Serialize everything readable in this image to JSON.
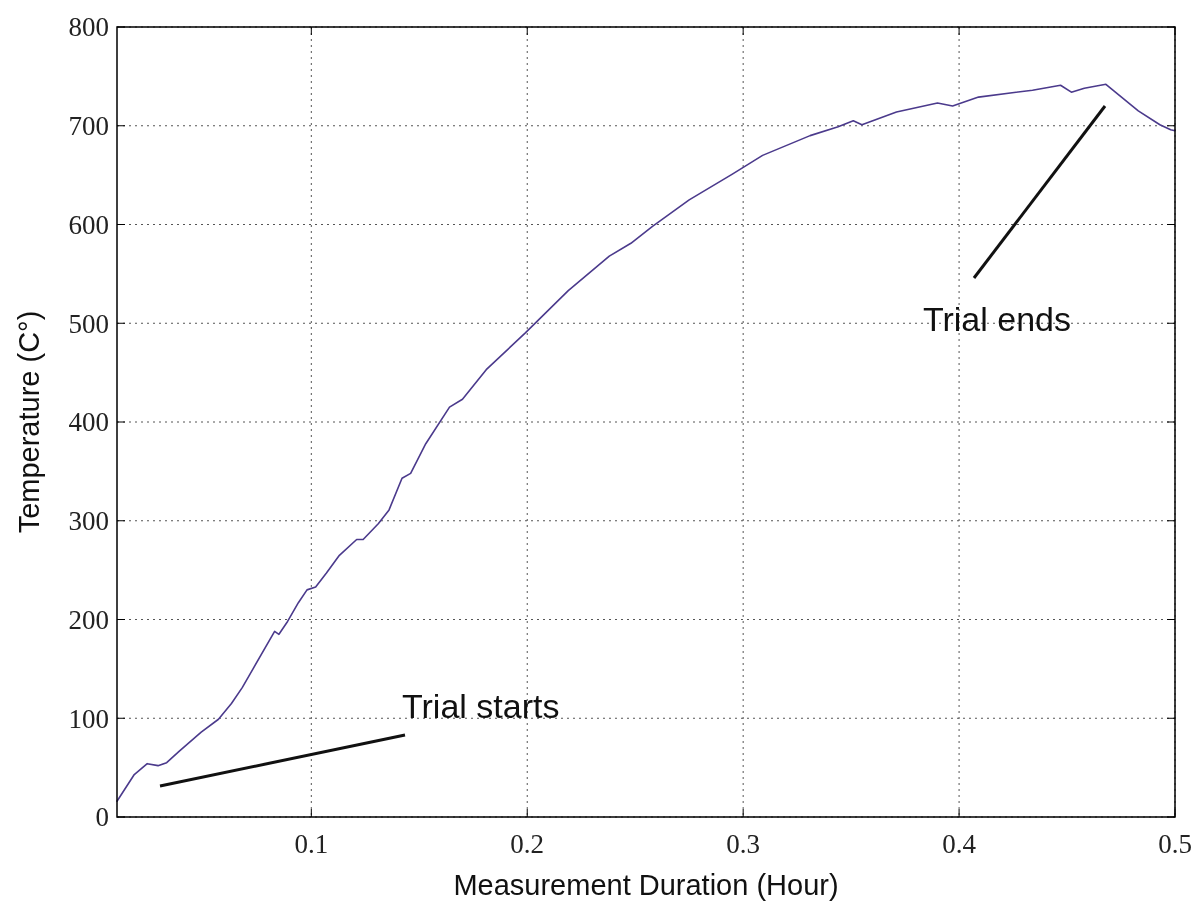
{
  "chart_data": {
    "type": "line",
    "xlabel": "Measurement Duration (Hour)",
    "ylabel": "Temperature (C°)",
    "color": "#4b3a8c",
    "line_style": "solid",
    "grid": true,
    "xlim": [
      0.01,
      0.5
    ],
    "ylim": [
      0,
      800
    ],
    "xticks": [
      0.1,
      0.2,
      0.3,
      0.4,
      0.5
    ],
    "yticks": [
      0,
      100,
      200,
      300,
      400,
      500,
      600,
      700,
      800
    ],
    "x": [
      0.01,
      0.018,
      0.024,
      0.029,
      0.033,
      0.039,
      0.049,
      0.057,
      0.063,
      0.068,
      0.073,
      0.083,
      0.085,
      0.089,
      0.094,
      0.098,
      0.102,
      0.107,
      0.113,
      0.121,
      0.124,
      0.131,
      0.136,
      0.142,
      0.146,
      0.153,
      0.164,
      0.17,
      0.181,
      0.199,
      0.219,
      0.238,
      0.248,
      0.258,
      0.275,
      0.295,
      0.309,
      0.331,
      0.344,
      0.351,
      0.355,
      0.371,
      0.39,
      0.397,
      0.409,
      0.434,
      0.447,
      0.452,
      0.458,
      0.468,
      0.483,
      0.493,
      0.498,
      0.5
    ],
    "values": [
      16,
      43,
      54,
      52,
      55,
      67,
      86,
      99,
      115,
      131,
      150,
      188,
      185,
      198,
      217,
      230,
      233,
      247,
      265,
      281,
      281,
      297,
      311,
      343,
      348,
      378,
      415,
      423,
      453,
      490,
      533,
      568,
      581,
      598,
      625,
      651,
      670,
      690,
      699,
      705,
      701,
      714,
      723,
      720,
      729,
      736,
      741,
      734,
      738,
      742,
      715,
      701,
      696,
      695
    ],
    "annotations": [
      "Trial starts",
      "Trial ends"
    ]
  }
}
